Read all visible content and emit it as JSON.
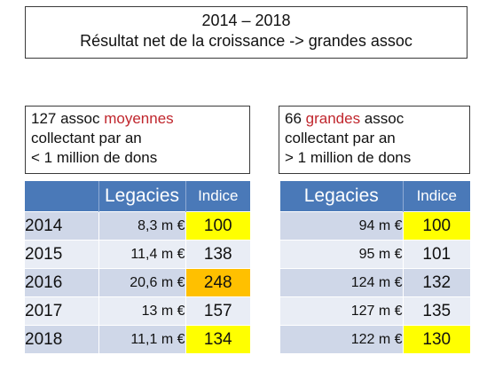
{
  "title": {
    "line1": "2014 – 2018",
    "line2": "Résultat net de la croissance -> grandes assoc"
  },
  "left_group": {
    "count": "127  assoc ",
    "highlight": "moyennes",
    "line2": "collectant par an",
    "line3": "< 1 million de dons",
    "highlight_color": "#c0262d"
  },
  "right_group": {
    "count": "66 ",
    "highlight": "grandes",
    "count_suffix": " assoc",
    "line2": "collectant par an",
    "line3": "> 1 million de dons",
    "highlight_color": "#c0262d"
  },
  "left_table": {
    "header_legacies": "Legacies",
    "header_indice": "Indice",
    "rows": [
      {
        "year": "2014",
        "legacies": "8,3 m €",
        "indice": "100",
        "highlight": "yellow"
      },
      {
        "year": "2015",
        "legacies": "11,4 m €",
        "indice": "138",
        "highlight": "none"
      },
      {
        "year": "2016",
        "legacies": "20,6 m €",
        "indice": "248",
        "highlight": "orange"
      },
      {
        "year": "2017",
        "legacies": "13 m €",
        "indice": "157",
        "highlight": "none"
      },
      {
        "year": "2018",
        "legacies": "11,1 m €",
        "indice": "134",
        "highlight": "yellow"
      }
    ]
  },
  "right_table": {
    "header_legacies": "Legacies",
    "header_indice": "Indice",
    "rows": [
      {
        "legacies": "94 m €",
        "indice": "100",
        "highlight": "yellow"
      },
      {
        "legacies": "95 m €",
        "indice": "101",
        "highlight": "none"
      },
      {
        "legacies": "124 m €",
        "indice": "132",
        "highlight": "none"
      },
      {
        "legacies": "127 m €",
        "indice": "135",
        "highlight": "none"
      },
      {
        "legacies": "122 m €",
        "indice": "130",
        "highlight": "yellow"
      }
    ]
  },
  "colors": {
    "header_blue": "#4a79b8",
    "row_dark": "#cfd7e8",
    "row_light": "#e9edf5",
    "yellow": "#ffff00",
    "orange": "#ffc000"
  }
}
